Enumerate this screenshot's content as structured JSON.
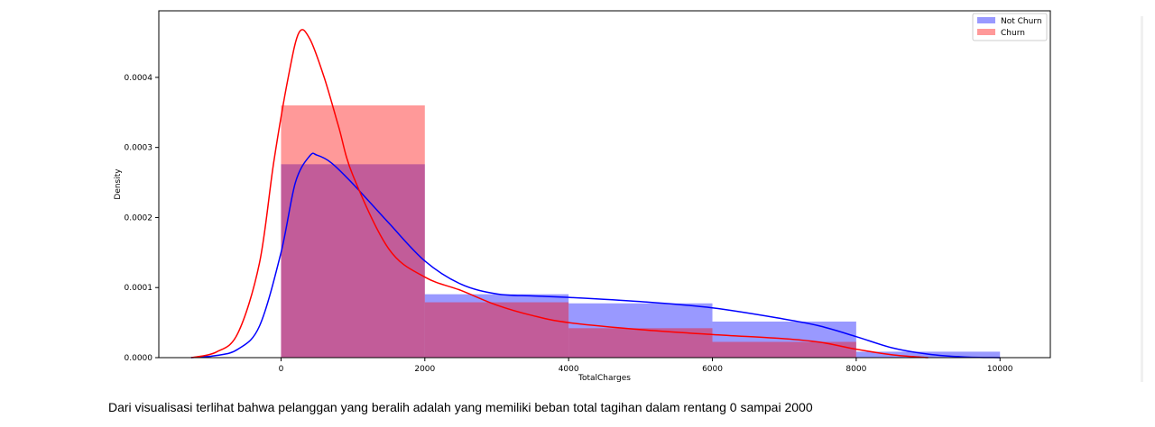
{
  "chart_data": {
    "type": "histogram",
    "xlabel": "TotalCharges",
    "ylabel": "Density",
    "xlim": [
      -1700,
      10700
    ],
    "ylim": [
      0,
      0.000495
    ],
    "x_ticks": [
      0,
      2000,
      4000,
      6000,
      8000,
      10000
    ],
    "x_tick_labels": [
      "0",
      "2000",
      "4000",
      "6000",
      "8000",
      "10000"
    ],
    "y_ticks": [
      0,
      0.0001,
      0.0002,
      0.0003,
      0.0004
    ],
    "y_tick_labels": [
      "0.0000",
      "0.0001",
      "0.0002",
      "0.0003",
      "0.0004"
    ],
    "legend_position": "top-right",
    "series": [
      {
        "name": "Not Churn",
        "color": "#0000ff",
        "bins": [
          {
            "x0": 0,
            "x1": 2000,
            "density": 0.000276
          },
          {
            "x0": 2000,
            "x1": 4000,
            "density": 9.05e-05
          },
          {
            "x0": 4000,
            "x1": 6000,
            "density": 7.75e-05
          },
          {
            "x0": 6000,
            "x1": 8000,
            "density": 5.15e-05
          },
          {
            "x0": 8000,
            "x1": 10000,
            "density": 8.5e-06
          }
        ],
        "kde": [
          {
            "x": -1250,
            "y": 0.0
          },
          {
            "x": -900,
            "y": 3e-06
          },
          {
            "x": -600,
            "y": 1.2e-05
          },
          {
            "x": -300,
            "y": 4.5e-05
          },
          {
            "x": 0,
            "y": 0.00015
          },
          {
            "x": 200,
            "y": 0.00025
          },
          {
            "x": 400,
            "y": 0.000288
          },
          {
            "x": 500,
            "y": 0.000289
          },
          {
            "x": 700,
            "y": 0.000278
          },
          {
            "x": 1000,
            "y": 0.000248
          },
          {
            "x": 1500,
            "y": 0.000192
          },
          {
            "x": 2000,
            "y": 0.000138
          },
          {
            "x": 2500,
            "y": 0.000105
          },
          {
            "x": 3000,
            "y": 9.1e-05
          },
          {
            "x": 3500,
            "y": 8.8e-05
          },
          {
            "x": 4000,
            "y": 8.6e-05
          },
          {
            "x": 5000,
            "y": 8e-05
          },
          {
            "x": 6000,
            "y": 7.1e-05
          },
          {
            "x": 7000,
            "y": 5.5e-05
          },
          {
            "x": 7500,
            "y": 4.5e-05
          },
          {
            "x": 8000,
            "y": 3e-05
          },
          {
            "x": 8500,
            "y": 1.4e-05
          },
          {
            "x": 9000,
            "y": 5e-06
          },
          {
            "x": 9500,
            "y": 1e-06
          },
          {
            "x": 10000,
            "y": 0.0
          }
        ]
      },
      {
        "name": "Churn",
        "color": "#ff0000",
        "bins": [
          {
            "x0": 0,
            "x1": 2000,
            "density": 0.00036
          },
          {
            "x0": 2000,
            "x1": 4000,
            "density": 7.9e-05
          },
          {
            "x0": 4000,
            "x1": 6000,
            "density": 4.2e-05
          },
          {
            "x0": 6000,
            "x1": 8000,
            "density": 2.25e-05
          }
        ],
        "kde": [
          {
            "x": -1250,
            "y": 0.0
          },
          {
            "x": -900,
            "y": 8e-06
          },
          {
            "x": -600,
            "y": 3.5e-05
          },
          {
            "x": -300,
            "y": 0.000135
          },
          {
            "x": -100,
            "y": 0.00028
          },
          {
            "x": 100,
            "y": 0.0004
          },
          {
            "x": 250,
            "y": 0.000464
          },
          {
            "x": 400,
            "y": 0.000455
          },
          {
            "x": 600,
            "y": 0.0004
          },
          {
            "x": 800,
            "y": 0.00033
          },
          {
            "x": 1000,
            "y": 0.00026
          },
          {
            "x": 1500,
            "y": 0.000155
          },
          {
            "x": 2000,
            "y": 0.000115
          },
          {
            "x": 2500,
            "y": 9.6e-05
          },
          {
            "x": 3000,
            "y": 7.5e-05
          },
          {
            "x": 3500,
            "y": 6e-05
          },
          {
            "x": 4000,
            "y": 5e-05
          },
          {
            "x": 5000,
            "y": 4e-05
          },
          {
            "x": 6000,
            "y": 3.3e-05
          },
          {
            "x": 7000,
            "y": 2.7e-05
          },
          {
            "x": 7500,
            "y": 2.2e-05
          },
          {
            "x": 8000,
            "y": 1.2e-05
          },
          {
            "x": 8500,
            "y": 4e-06
          },
          {
            "x": 9000,
            "y": 0.0
          }
        ]
      }
    ]
  },
  "caption": "Dari visualisasi terlihat bahwa pelanggan yang beralih adalah yang memiliki beban total tagihan dalam rentang 0 sampai 2000"
}
